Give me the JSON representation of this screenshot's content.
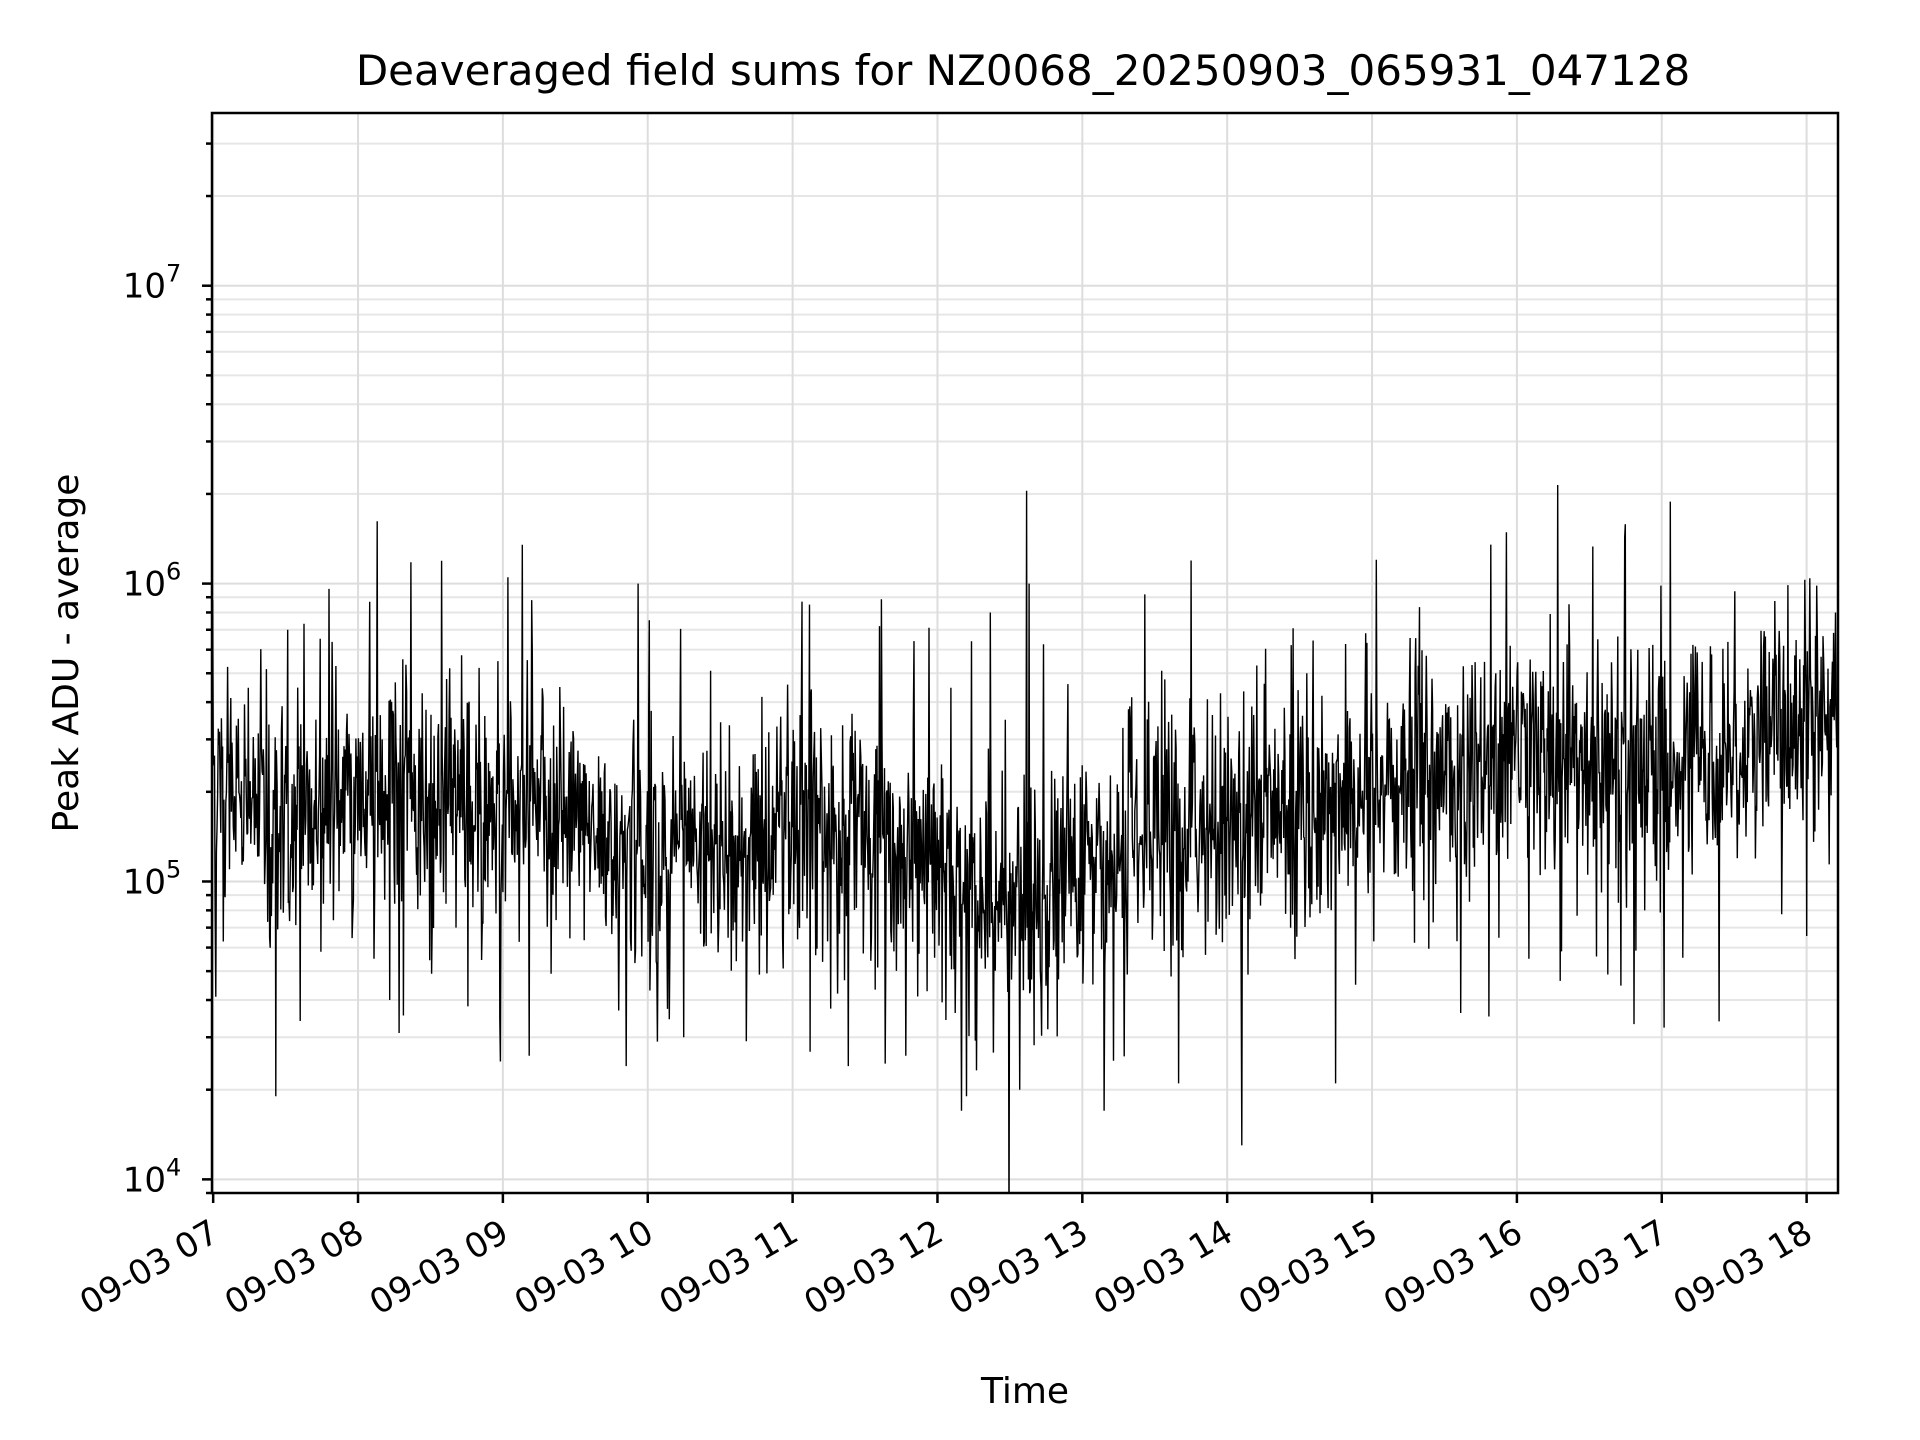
{
  "chart_data": {
    "type": "line",
    "title": "Deaveraged field sums for NZ0068_20250903_065931_047128",
    "xlabel": "Time",
    "ylabel": "Peak ADU - average",
    "yscale": "log",
    "grid": true,
    "x_ticks": [
      "09-03 07",
      "09-03 08",
      "09-03 09",
      "09-03 10",
      "09-03 11",
      "09-03 12",
      "09-03 13",
      "09-03 14",
      "09-03 15",
      "09-03 16",
      "09-03 17",
      "09-03 18"
    ],
    "y_ticks": [
      {
        "value": 10000,
        "mantissa": "10",
        "exponent": "4"
      },
      {
        "value": 100000,
        "mantissa": "10",
        "exponent": "5"
      },
      {
        "value": 1000000,
        "mantissa": "10",
        "exponent": "6"
      },
      {
        "value": 10000000,
        "mantissa": "10",
        "exponent": "7"
      }
    ],
    "xlim": [
      "2025-09-03T06:59:31",
      "2025-09-03T18:13:00"
    ],
    "ylim": [
      9000,
      38000000
    ],
    "series": [
      {
        "x_start": "2025-09-03T06:59:31",
        "x_end": "2025-09-03T18:13:00",
        "color": "#000000",
        "trend_knots": [
          [
            "2025-09-03T07:00",
            220000
          ],
          [
            "2025-09-03T07:30",
            160000
          ],
          [
            "2025-09-03T08:00",
            200000
          ],
          [
            "2025-09-03T09:00",
            170000
          ],
          [
            "2025-09-03T10:00",
            130000
          ],
          [
            "2025-09-03T10:30",
            120000
          ],
          [
            "2025-09-03T11:00",
            170000
          ],
          [
            "2025-09-03T11:30",
            150000
          ],
          [
            "2025-09-03T12:00",
            100000
          ],
          [
            "2025-09-03T12:30",
            80000
          ],
          [
            "2025-09-03T13:00",
            100000
          ],
          [
            "2025-09-03T13:30",
            140000
          ],
          [
            "2025-09-03T14:00",
            160000
          ],
          [
            "2025-09-03T15:00",
            200000
          ],
          [
            "2025-09-03T16:00",
            240000
          ],
          [
            "2025-09-03T17:00",
            250000
          ],
          [
            "2025-09-03T18:13",
            350000
          ]
        ],
        "peaks": [
          [
            "2025-09-03T06:59:40",
            880000
          ],
          [
            "2025-09-03T07:31",
            700000
          ],
          [
            "2025-09-03T07:48",
            960000
          ],
          [
            "2025-09-03T08:08",
            1620000
          ],
          [
            "2025-09-03T08:13",
            970000
          ],
          [
            "2025-09-03T08:22",
            1180000
          ],
          [
            "2025-09-03T08:38",
            520000
          ],
          [
            "2025-09-03T09:02",
            1050000
          ],
          [
            "2025-09-03T09:08",
            1350000
          ],
          [
            "2025-09-03T09:12",
            880000
          ],
          [
            "2025-09-03T09:56",
            1000000
          ],
          [
            "2025-09-03T10:26",
            510000
          ],
          [
            "2025-09-03T11:04",
            870000
          ],
          [
            "2025-09-03T11:07",
            850000
          ],
          [
            "2025-09-03T11:36",
            720000
          ],
          [
            "2025-09-03T12:14",
            640000
          ],
          [
            "2025-09-03T12:22",
            800000
          ],
          [
            "2025-09-03T12:37",
            2050000
          ],
          [
            "2025-09-03T12:38",
            1000000
          ],
          [
            "2025-09-03T12:54",
            460000
          ],
          [
            "2025-09-03T13:26",
            920000
          ],
          [
            "2025-09-03T13:33",
            510000
          ],
          [
            "2025-09-03T14:33",
            500000
          ],
          [
            "2025-09-03T15:19",
            530000
          ],
          [
            "2025-09-03T16:50",
            600000
          ],
          [
            "2025-09-03T17:46",
            560000
          ],
          [
            "2025-09-03T18:12",
            800000
          ]
        ],
        "dips": [
          [
            "2025-09-03T07:01",
            41000
          ],
          [
            "2025-09-03T07:26",
            19000
          ],
          [
            "2025-09-03T07:36",
            34000
          ],
          [
            "2025-09-03T08:13",
            40000
          ],
          [
            "2025-09-03T08:17",
            31000
          ],
          [
            "2025-09-03T09:11",
            26000
          ],
          [
            "2025-09-03T09:51",
            24000
          ],
          [
            "2025-09-03T10:04",
            29000
          ],
          [
            "2025-09-03T10:15",
            30000
          ],
          [
            "2025-09-03T11:23",
            24000
          ],
          [
            "2025-09-03T11:47",
            26000
          ],
          [
            "2025-09-03T12:10",
            17000
          ],
          [
            "2025-09-03T12:12",
            19000
          ],
          [
            "2025-09-03T12:34",
            20000
          ],
          [
            "2025-09-03T13:09",
            17000
          ],
          [
            "2025-09-03T13:13",
            25000
          ],
          [
            "2025-09-03T13:40",
            21000
          ],
          [
            "2025-09-03T14:06",
            13000
          ],
          [
            "2025-09-03T14:45",
            21000
          ],
          [
            "2025-09-03T16:05",
            55000
          ],
          [
            "2025-09-03T16:33",
            56000
          ]
        ]
      }
    ]
  }
}
